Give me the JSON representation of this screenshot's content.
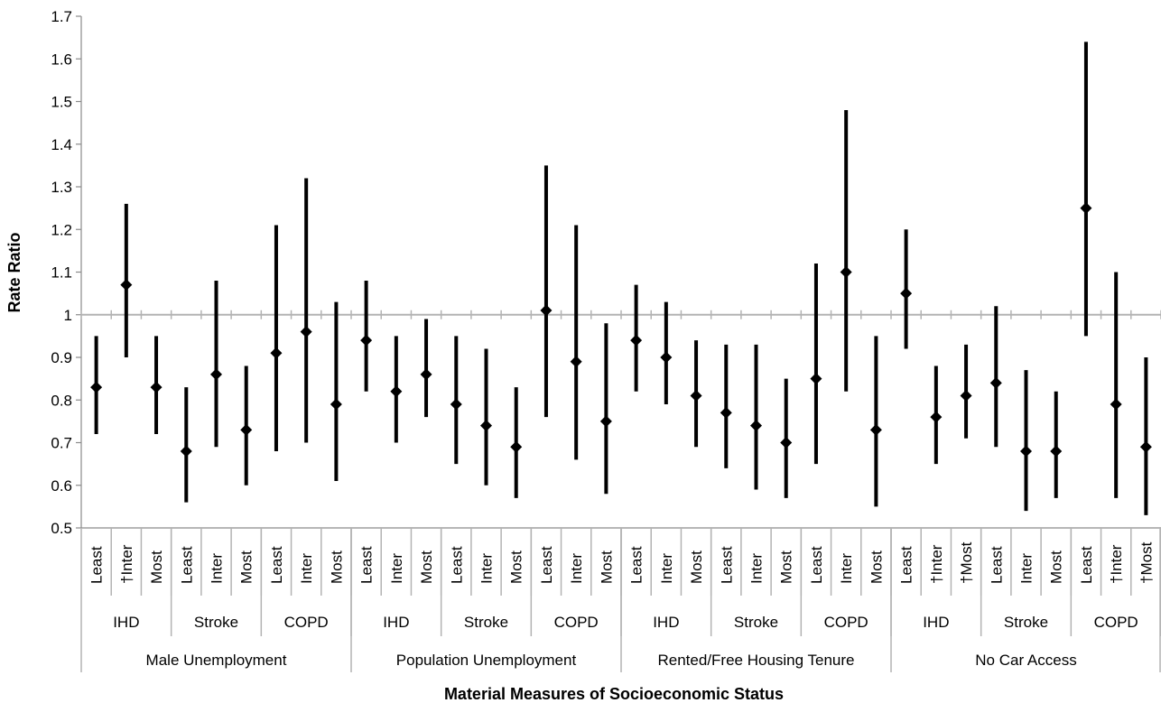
{
  "chart_data": {
    "type": "scatter",
    "title": "",
    "xlabel": "Material Measures of Socioeconomic Status",
    "ylabel": "Rate Ratio",
    "ylim": [
      0.5,
      1.7
    ],
    "yticks": [
      "0.5",
      "0.6",
      "0.7",
      "0.8",
      "0.9",
      "1",
      "1.1",
      "1.2",
      "1.3",
      "1.4",
      "1.5",
      "1.6",
      "1.7"
    ],
    "reference_line": 1,
    "grid": false,
    "legend": "none",
    "marker_color": "#000000",
    "reference_color": "#b3b3b3",
    "measures": [
      {
        "label": "Male Unemployment",
        "outcomes": [
          {
            "label": "IHD",
            "points": [
              {
                "level": "Least",
                "estimate": 0.83,
                "lower": 0.72,
                "upper": 0.95
              },
              {
                "level": "†Inter",
                "estimate": 1.07,
                "lower": 0.9,
                "upper": 1.26
              },
              {
                "level": "Most",
                "estimate": 0.83,
                "lower": 0.72,
                "upper": 0.95
              }
            ]
          },
          {
            "label": "Stroke",
            "points": [
              {
                "level": "Least",
                "estimate": 0.68,
                "lower": 0.56,
                "upper": 0.83
              },
              {
                "level": "Inter",
                "estimate": 0.86,
                "lower": 0.69,
                "upper": 1.08
              },
              {
                "level": "Most",
                "estimate": 0.73,
                "lower": 0.6,
                "upper": 0.88
              }
            ]
          },
          {
            "label": "COPD",
            "points": [
              {
                "level": "Least",
                "estimate": 0.91,
                "lower": 0.68,
                "upper": 1.21
              },
              {
                "level": "Inter",
                "estimate": 0.96,
                "lower": 0.7,
                "upper": 1.32
              },
              {
                "level": "Most",
                "estimate": 0.79,
                "lower": 0.61,
                "upper": 1.03
              }
            ]
          }
        ]
      },
      {
        "label": "Population Unemployment",
        "outcomes": [
          {
            "label": "IHD",
            "points": [
              {
                "level": "Least",
                "estimate": 0.94,
                "lower": 0.82,
                "upper": 1.08
              },
              {
                "level": "Inter",
                "estimate": 0.82,
                "lower": 0.7,
                "upper": 0.95
              },
              {
                "level": "Most",
                "estimate": 0.86,
                "lower": 0.76,
                "upper": 0.99
              }
            ]
          },
          {
            "label": "Stroke",
            "points": [
              {
                "level": "Least",
                "estimate": 0.79,
                "lower": 0.65,
                "upper": 0.95
              },
              {
                "level": "Inter",
                "estimate": 0.74,
                "lower": 0.6,
                "upper": 0.92
              },
              {
                "level": "Most",
                "estimate": 0.69,
                "lower": 0.57,
                "upper": 0.83
              }
            ]
          },
          {
            "label": "COPD",
            "points": [
              {
                "level": "Least",
                "estimate": 1.01,
                "lower": 0.76,
                "upper": 1.35
              },
              {
                "level": "Inter",
                "estimate": 0.89,
                "lower": 0.66,
                "upper": 1.21
              },
              {
                "level": "Most",
                "estimate": 0.75,
                "lower": 0.58,
                "upper": 0.98
              }
            ]
          }
        ]
      },
      {
        "label": "Rented/Free Housing Tenure",
        "outcomes": [
          {
            "label": "IHD",
            "points": [
              {
                "level": "Least",
                "estimate": 0.94,
                "lower": 0.82,
                "upper": 1.07
              },
              {
                "level": "Inter",
                "estimate": 0.9,
                "lower": 0.79,
                "upper": 1.03
              },
              {
                "level": "Most",
                "estimate": 0.81,
                "lower": 0.69,
                "upper": 0.94
              }
            ]
          },
          {
            "label": "Stroke",
            "points": [
              {
                "level": "Least",
                "estimate": 0.77,
                "lower": 0.64,
                "upper": 0.93
              },
              {
                "level": "Inter",
                "estimate": 0.74,
                "lower": 0.59,
                "upper": 0.93
              },
              {
                "level": "Most",
                "estimate": 0.7,
                "lower": 0.57,
                "upper": 0.85
              }
            ]
          },
          {
            "label": "COPD",
            "points": [
              {
                "level": "Least",
                "estimate": 0.85,
                "lower": 0.65,
                "upper": 1.12
              },
              {
                "level": "Inter",
                "estimate": 1.1,
                "lower": 0.82,
                "upper": 1.48
              },
              {
                "level": "Most",
                "estimate": 0.73,
                "lower": 0.55,
                "upper": 0.95
              }
            ]
          }
        ]
      },
      {
        "label": "No Car Access",
        "outcomes": [
          {
            "label": "IHD",
            "points": [
              {
                "level": "Least",
                "estimate": 1.05,
                "lower": 0.92,
                "upper": 1.2
              },
              {
                "level": "†Inter",
                "estimate": 0.76,
                "lower": 0.65,
                "upper": 0.88
              },
              {
                "level": "†Most",
                "estimate": 0.81,
                "lower": 0.71,
                "upper": 0.93
              }
            ]
          },
          {
            "label": "Stroke",
            "points": [
              {
                "level": "Least",
                "estimate": 0.84,
                "lower": 0.69,
                "upper": 1.02
              },
              {
                "level": "Inter",
                "estimate": 0.68,
                "lower": 0.54,
                "upper": 0.87
              },
              {
                "level": "Most",
                "estimate": 0.68,
                "lower": 0.57,
                "upper": 0.82
              }
            ]
          },
          {
            "label": "COPD",
            "points": [
              {
                "level": "Least",
                "estimate": 1.25,
                "lower": 0.95,
                "upper": 1.64
              },
              {
                "level": "†Inter",
                "estimate": 0.79,
                "lower": 0.57,
                "upper": 1.1
              },
              {
                "level": "†Most",
                "estimate": 0.69,
                "lower": 0.53,
                "upper": 0.9
              }
            ]
          }
        ]
      }
    ]
  }
}
